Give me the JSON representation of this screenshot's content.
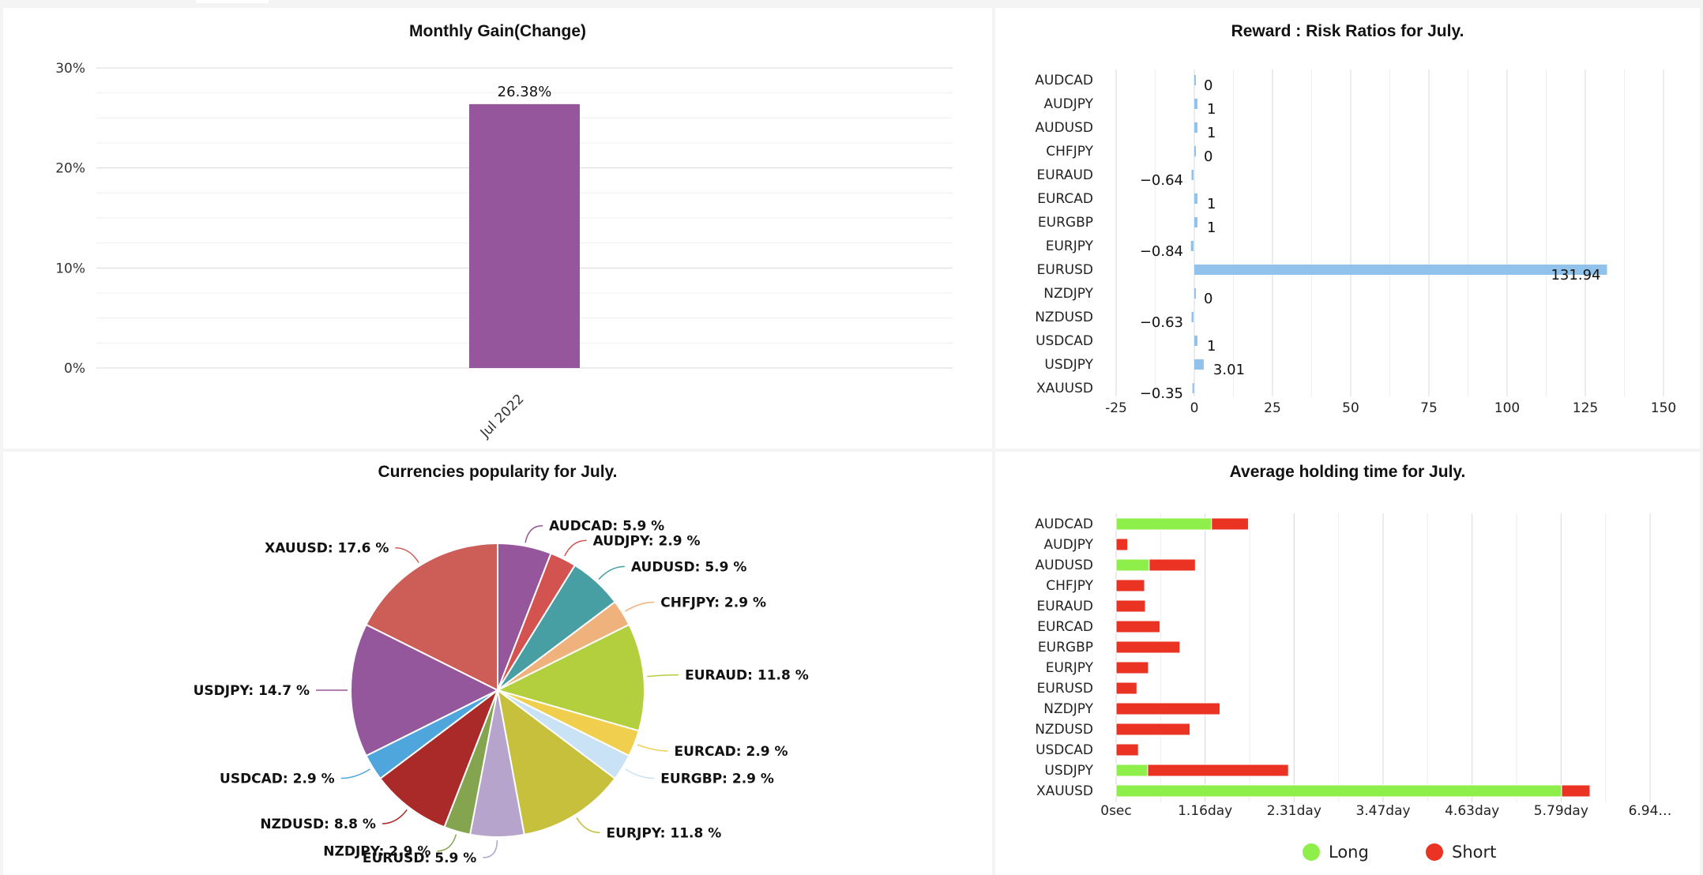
{
  "chart_data": [
    {
      "type": "bar",
      "title": "Monthly Gain(Change)",
      "categories": [
        "Jul 2022"
      ],
      "values": [
        26.38
      ],
      "data_labels": [
        "26.38%"
      ],
      "y_ticks": [
        "0%",
        "10%",
        "20%",
        "30%"
      ],
      "ylim": [
        0,
        30
      ],
      "grid": true,
      "colors": {
        "bar": "#96569c"
      }
    },
    {
      "type": "bar",
      "orientation": "horizontal",
      "title": "Reward : Risk Ratios for July.",
      "categories": [
        "AUDCAD",
        "AUDJPY",
        "AUDUSD",
        "CHFJPY",
        "EURAUD",
        "EURCAD",
        "EURGBP",
        "EURJPY",
        "EURUSD",
        "NZDJPY",
        "NZDUSD",
        "USDCAD",
        "USDJPY",
        "XAUUSD"
      ],
      "values": [
        0,
        1,
        1,
        0,
        -0.64,
        1,
        1,
        -0.84,
        131.94,
        0,
        -0.63,
        1,
        3.01,
        -0.35
      ],
      "data_labels": [
        "0",
        "1",
        "1",
        "0",
        "-0.64",
        "1",
        "1",
        "-0.84",
        "131.94",
        "0",
        "-0.63",
        "1",
        "3.01",
        "-0.35"
      ],
      "x_ticks": [
        "-25",
        "0",
        "25",
        "50",
        "75",
        "100",
        "125",
        "150"
      ],
      "xlim": [
        -25,
        150
      ],
      "grid": true,
      "colors": {
        "bar": "#90c2ec"
      }
    },
    {
      "type": "pie",
      "title": "Currencies popularity for July.",
      "slices": [
        {
          "name": "AUDCAD",
          "value": 5.9,
          "label": "AUDCAD: 5.9 %",
          "color": "#96569c"
        },
        {
          "name": "AUDJPY",
          "value": 2.9,
          "label": "AUDJPY: 2.9 %",
          "color": "#d2534f"
        },
        {
          "name": "AUDUSD",
          "value": 5.9,
          "label": "AUDUSD: 5.9 %",
          "color": "#479ea3"
        },
        {
          "name": "CHFJPY",
          "value": 2.9,
          "label": "CHFJPY: 2.9 %",
          "color": "#f0b27c"
        },
        {
          "name": "EURAUD",
          "value": 11.8,
          "label": "EURAUD: 11.8 %",
          "color": "#b3cf3e"
        },
        {
          "name": "EURCAD",
          "value": 2.9,
          "label": "EURCAD: 2.9 %",
          "color": "#f0cf4f"
        },
        {
          "name": "EURGBP",
          "value": 2.9,
          "label": "EURGBP: 2.9 %",
          "color": "#c9e2f6"
        },
        {
          "name": "EURJPY",
          "value": 11.8,
          "label": "EURJPY: 11.8 %",
          "color": "#c6c03c"
        },
        {
          "name": "EURUSD",
          "value": 5.9,
          "label": "EURUSD: 5.9 %",
          "color": "#b6a4cc"
        },
        {
          "name": "NZDJPY",
          "value": 2.9,
          "label": "NZDJPY: 2.9 %",
          "color": "#85a450"
        },
        {
          "name": "NZDUSD",
          "value": 8.8,
          "label": "NZDUSD: 8.8 %",
          "color": "#a92a29"
        },
        {
          "name": "USDCAD",
          "value": 2.9,
          "label": "USDCAD: 2.9 %",
          "color": "#4ea6dc"
        },
        {
          "name": "USDJPY",
          "value": 14.7,
          "label": "USDJPY: 14.7 %",
          "color": "#95579c"
        },
        {
          "name": "XAUUSD",
          "value": 17.6,
          "label": "XAUUSD: 17.6 %",
          "color": "#cc5d57"
        }
      ]
    },
    {
      "type": "bar",
      "orientation": "horizontal",
      "stacked": true,
      "title": "Average holding time for July.",
      "x_unit": "day",
      "categories": [
        "AUDCAD",
        "AUDJPY",
        "AUDUSD",
        "CHFJPY",
        "EURAUD",
        "EURCAD",
        "EURGBP",
        "EURJPY",
        "EURUSD",
        "NZDJPY",
        "NZDUSD",
        "USDCAD",
        "USDJPY",
        "XAUUSD"
      ],
      "series": [
        {
          "name": "Long",
          "color": "#8eef4a",
          "values": [
            1.24,
            0,
            0.43,
            0,
            0,
            0,
            0,
            0,
            0,
            0,
            0,
            0,
            0.41,
            5.79
          ]
        },
        {
          "name": "Short",
          "color": "#ea3323",
          "values": [
            0.48,
            0.15,
            0.6,
            0.37,
            0.38,
            0.57,
            0.83,
            0.42,
            0.27,
            1.35,
            0.96,
            0.29,
            1.83,
            0.37
          ]
        }
      ],
      "x_ticks": [
        "0sec",
        "1.16day",
        "2.31day",
        "3.47day",
        "4.63day",
        "5.79day",
        "6.94…"
      ],
      "xlim": [
        0,
        6.94
      ],
      "grid": true,
      "legend": "bottom"
    }
  ]
}
